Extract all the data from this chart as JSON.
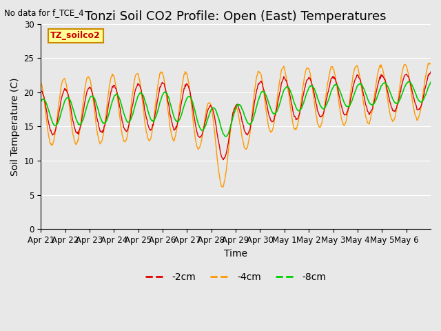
{
  "title": "Tonzi Soil CO2 Profile: Open (East) Temperatures",
  "subtitle": "No data for f_TCE_4",
  "xlabel": "Time",
  "ylabel": "Soil Temperature (C)",
  "ylim": [
    0,
    30
  ],
  "yticks": [
    0,
    5,
    10,
    15,
    20,
    25,
    30
  ],
  "plot_bg_color": "#e8e8e8",
  "legend_label": "TZ_soilco2",
  "legend_box_color": "#ffff99",
  "legend_box_edge": "#cc8800",
  "color_2cm": "#dd0000",
  "color_4cm": "#ff9900",
  "color_8cm": "#00cc00",
  "label_2cm": "-2cm",
  "label_4cm": "-4cm",
  "label_8cm": "-8cm",
  "xtick_labels": [
    "Apr 21",
    "Apr 22",
    "Apr 23",
    "Apr 24",
    "Apr 25",
    "Apr 26",
    "Apr 27",
    "Apr 28",
    "Apr 29",
    "Apr 30",
    "May 1",
    "May 2",
    "May 3",
    "May 4",
    "May 5",
    "May 6"
  ],
  "num_days": 16,
  "title_fontsize": 13,
  "axis_label_fontsize": 10,
  "tick_fontsize": 8.5
}
